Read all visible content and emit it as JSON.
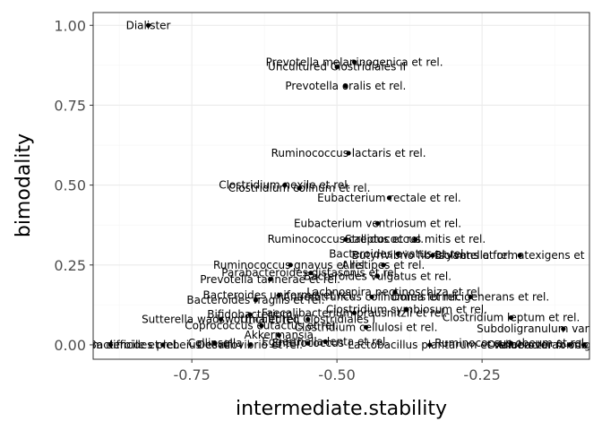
{
  "chart_data": {
    "type": "scatter",
    "xlabel": "intermediate.stability",
    "ylabel": "bimodality",
    "xlim": [
      -0.92,
      -0.065
    ],
    "ylim": [
      -0.045,
      1.04
    ],
    "x_ticks": [
      -0.75,
      -0.5,
      -0.25
    ],
    "x_tick_labels": [
      "-0.75",
      "-0.50",
      "-0.25"
    ],
    "y_ticks": [
      0,
      0.25,
      0.5,
      0.75,
      1.0
    ],
    "y_tick_labels": [
      "0.00",
      "0.25",
      "0.50",
      "0.75",
      "1.00"
    ],
    "grid": true,
    "colors": {
      "panel_border": "#333333",
      "grid_major": "#ebebeb",
      "grid_minor": "#f5f5f5",
      "point": "#000000"
    },
    "points": [
      {
        "label": "Dialister",
        "x": -0.825,
        "y": 1.0
      },
      {
        "label": "Prevotella melaninogenica et rel.",
        "x": -0.47,
        "y": 0.885
      },
      {
        "label": "Uncultured Clostridiales II",
        "x": -0.5,
        "y": 0.87
      },
      {
        "label": "Prevotella oralis et rel.",
        "x": -0.485,
        "y": 0.81
      },
      {
        "label": "Ruminococcus lactaris et rel.",
        "x": -0.48,
        "y": 0.6
      },
      {
        "label": "Clostridium nexile et rel.",
        "x": -0.59,
        "y": 0.5
      },
      {
        "label": "Clostridium colinum et rel.",
        "x": -0.565,
        "y": 0.49
      },
      {
        "label": "Eubacterium rectale et rel.",
        "x": -0.41,
        "y": 0.46
      },
      {
        "label": "Eubacterium ventriosum et rel.",
        "x": -0.43,
        "y": 0.38
      },
      {
        "label": "Ruminococcus callidus et rel.",
        "x": -0.485,
        "y": 0.33
      },
      {
        "label": "Streptococcus mitis et rel.",
        "x": -0.365,
        "y": 0.33
      },
      {
        "label": "Bacteroides ovatus et rel.",
        "x": -0.395,
        "y": 0.285
      },
      {
        "label": "Butyrivibrio fibrisolvens et rel.",
        "x": -0.335,
        "y": 0.28
      },
      {
        "label": "Bryantella formatexigens et rel.",
        "x": -0.185,
        "y": 0.28
      },
      {
        "label": "Ruminococcus gnavus et rel.",
        "x": -0.58,
        "y": 0.25
      },
      {
        "label": "Allistipes et rel.",
        "x": -0.42,
        "y": 0.25
      },
      {
        "label": "Parabacteroides distasonis et rel.",
        "x": -0.545,
        "y": 0.225
      },
      {
        "label": "Bacteroides vulgatus et rel.",
        "x": -0.43,
        "y": 0.215
      },
      {
        "label": "Prevotella tannerae et rel.",
        "x": -0.615,
        "y": 0.205
      },
      {
        "label": "Bacteroides uniformis et rel.",
        "x": -0.6,
        "y": 0.155
      },
      {
        "label": "Bacteroides fragilis et rel.",
        "x": -0.64,
        "y": 0.14
      },
      {
        "label": "Lachnospira pectinoschiza et rel.",
        "x": -0.4,
        "y": 0.165
      },
      {
        "label": "Anaerotruncus colihominis et rel.",
        "x": -0.44,
        "y": 0.15
      },
      {
        "label": "Dorea formicigenerans et rel.",
        "x": -0.27,
        "y": 0.15
      },
      {
        "label": "Faecalibacterium prausnitzii et rel.",
        "x": -0.47,
        "y": 0.1
      },
      {
        "label": "Clostridium symbiosum et rel.",
        "x": -0.38,
        "y": 0.11
      },
      {
        "label": "Clostridium leptum et rel.",
        "x": -0.2,
        "y": 0.085
      },
      {
        "label": "Bifidobacterium",
        "x": -0.65,
        "y": 0.095
      },
      {
        "label": "Sutterella wadsworthia et rel.",
        "x": -0.7,
        "y": 0.08
      },
      {
        "label": "Uncultured Clostridiales I",
        "x": -0.55,
        "y": 0.08
      },
      {
        "label": "Coprococcus eutactus et rel.",
        "x": -0.63,
        "y": 0.06
      },
      {
        "label": "Clostridium cellulosi et rel.",
        "x": -0.45,
        "y": 0.055
      },
      {
        "label": "Akkermansia",
        "x": -0.6,
        "y": 0.03
      },
      {
        "label": "Subdoligranulum variable at rel.",
        "x": -0.11,
        "y": 0.05
      },
      {
        "label": "Clostridium difficile et rel.",
        "x": -0.89,
        "y": 0.0
      },
      {
        "label": "Bacteroides plebeius et rel.",
        "x": -0.8,
        "y": 0.0
      },
      {
        "label": "Collinsella",
        "x": -0.71,
        "y": 0.005
      },
      {
        "label": "Desulfovibrio et rel.",
        "x": -0.65,
        "y": 0.0
      },
      {
        "label": "Enterococcus",
        "x": -0.55,
        "y": 0.005
      },
      {
        "label": "Eggerthella lenta et rel.",
        "x": -0.52,
        "y": 0.01
      },
      {
        "label": "Lactobacillus plantarum et rel.",
        "x": -0.34,
        "y": 0.0
      },
      {
        "label": "Ruminococcus obeum et rel.",
        "x": -0.2,
        "y": 0.005
      },
      {
        "label": "Oxalobacter formigenes et rel.",
        "x": -0.1,
        "y": 0.0
      },
      {
        "label": "Anaerovorax odorimutans et rel.",
        "x": -0.075,
        "y": 0.0
      }
    ]
  }
}
